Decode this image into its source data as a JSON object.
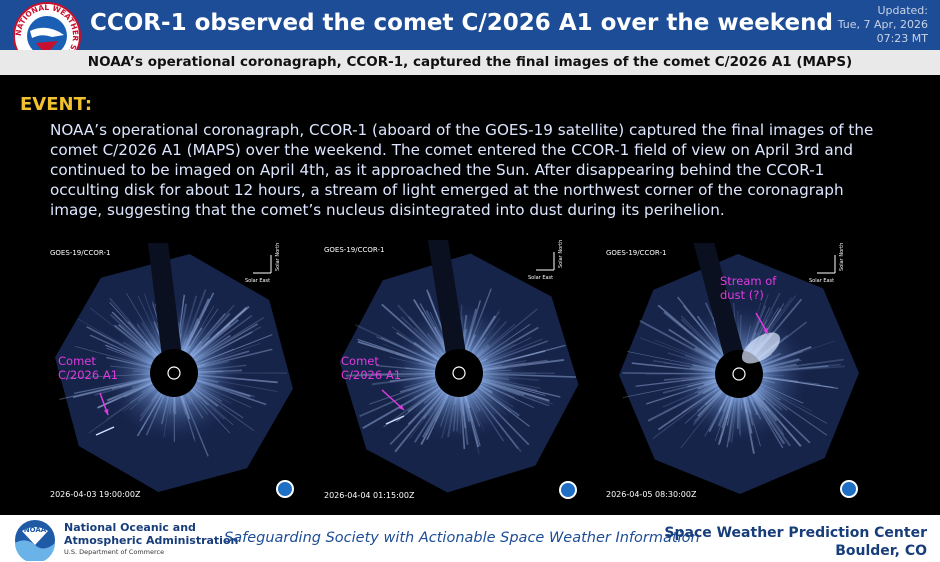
{
  "header": {
    "logo_text": "NATIONAL WEATHER SERVICE",
    "title": "CCOR-1 observed the comet C/2026 A1 over the weekend",
    "updated_label": "Updated:",
    "updated_date": "Tue, 7 Apr, 2026",
    "updated_time": "07:23 MT"
  },
  "subtitle": "NOAA’s operational coronagraph, CCOR-1, captured the final images of the comet C/2026 A1 (MAPS)",
  "event": {
    "label": "EVENT:",
    "text": "NOAA’s operational coronagraph, CCOR-1 (aboard of the GOES-19 satellite) captured the final images of the comet C/2026 A1 (MAPS) over the weekend. The comet entered the CCOR-1 field of view on April 3rd and continued to be imaged on April 4th, as it approached the Sun. After disappearing behind the CCOR-1 occulting disk for about 12 hours, a stream of light emerged at the northwest corner of the coronagraph image, suggesting that the comet’s nucleus disintegrated into dust during its perihelion."
  },
  "panels": [
    {
      "instrument": "GOES-19/CCOR-1",
      "solar_north": "Solar North",
      "solar_east": "Solar East",
      "timestamp": "2026-04-03 19:00:00Z",
      "annotation": [
        "Comet",
        "C/2026 A1"
      ]
    },
    {
      "instrument": "GOES-19/CCOR-1",
      "solar_north": "Solar North",
      "solar_east": "Solar East",
      "timestamp": "2026-04-04 01:15:00Z",
      "annotation": [
        "Comet",
        "C/2026 A1"
      ]
    },
    {
      "instrument": "GOES-19/CCOR-1",
      "solar_north": "Solar North",
      "solar_east": "Solar East",
      "timestamp": "2026-04-05 08:30:00Z",
      "annotation": [
        "Stream of",
        "dust (?)"
      ]
    }
  ],
  "footer": {
    "logo_text": "NOAA",
    "org_lines": [
      "National Oceanic and",
      "Atmospheric Administration"
    ],
    "department": "U.S. Department of Commerce",
    "tagline": "Safeguarding Society with Actionable Space Weather Information",
    "center": "Space Weather Prediction Center",
    "location": "Boulder, CO"
  }
}
